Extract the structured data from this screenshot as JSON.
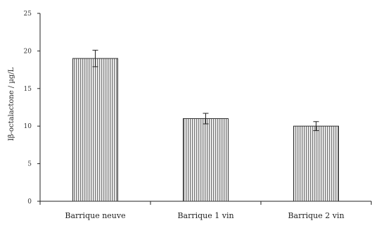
{
  "chart_data": {
    "type": "bar",
    "title": "",
    "xlabel": "",
    "ylabel": "Iβ-octalactone / µg/L",
    "categories": [
      "Barrique neuve",
      "Barrique 1 vin",
      "Barrique 2 vin"
    ],
    "values": [
      19,
      11,
      10
    ],
    "errors": [
      1.1,
      0.7,
      0.6
    ],
    "ylim": [
      0,
      25
    ],
    "yticks": [
      "0",
      "5",
      "10",
      "15",
      "20",
      "25"
    ],
    "grid": false,
    "legend": "none",
    "bar_fill": "vertical-hatch",
    "bar_color": "#555555"
  }
}
